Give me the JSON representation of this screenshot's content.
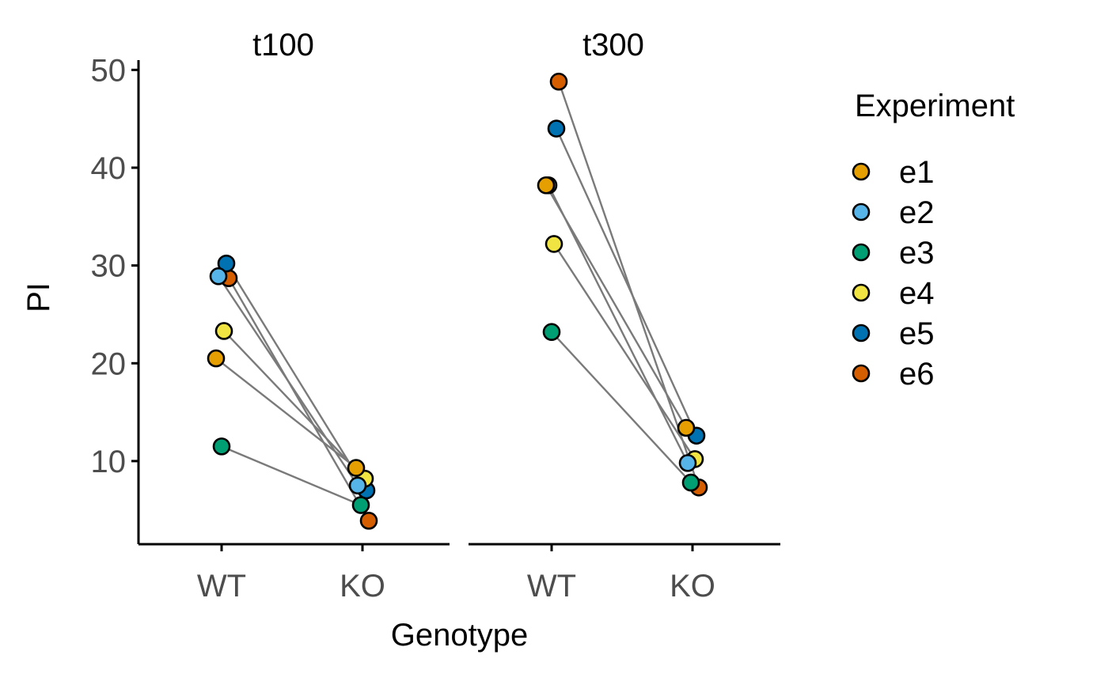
{
  "chart_data": {
    "type": "scatter",
    "description_type": "paired dot plot faceted by time",
    "ylabel": "PI",
    "xlabel": "Genotype",
    "ylim": [
      1.5,
      51
    ],
    "y_ticks": [
      10,
      20,
      30,
      40,
      50
    ],
    "categories": [
      "WT",
      "KO"
    ],
    "facets": [
      "t100",
      "t300"
    ],
    "legend": {
      "title": "Experiment",
      "placement": "right",
      "entries": [
        {
          "name": "e1",
          "color": "#E69F00"
        },
        {
          "name": "e2",
          "color": "#56B4E9"
        },
        {
          "name": "e3",
          "color": "#009E73"
        },
        {
          "name": "e4",
          "color": "#F0E442"
        },
        {
          "name": "e5",
          "color": "#0072B2"
        },
        {
          "name": "e6",
          "color": "#D55E00"
        }
      ]
    },
    "series": [
      {
        "name": "e1",
        "values": {
          "t100": {
            "WT": 20.5,
            "KO": 9.3
          },
          "t300": {
            "WT": 38.2,
            "KO": 13.4
          }
        }
      },
      {
        "name": "e2",
        "values": {
          "t100": {
            "WT": 28.9,
            "KO": 7.5
          },
          "t300": {
            "WT": 38.2,
            "KO": 9.8
          }
        }
      },
      {
        "name": "e3",
        "values": {
          "t100": {
            "WT": 11.5,
            "KO": 5.5
          },
          "t300": {
            "WT": 23.2,
            "KO": 7.8
          }
        }
      },
      {
        "name": "e4",
        "values": {
          "t100": {
            "WT": 23.3,
            "KO": 8.2
          },
          "t300": {
            "WT": 32.2,
            "KO": 10.2
          }
        }
      },
      {
        "name": "e5",
        "values": {
          "t100": {
            "WT": 30.2,
            "KO": 7.0
          },
          "t300": {
            "WT": 44.0,
            "KO": 12.6
          }
        }
      },
      {
        "name": "e6",
        "values": {
          "t100": {
            "WT": 28.7,
            "KO": 3.9
          },
          "t300": {
            "WT": 48.8,
            "KO": 7.3
          }
        }
      }
    ],
    "grid": false
  }
}
